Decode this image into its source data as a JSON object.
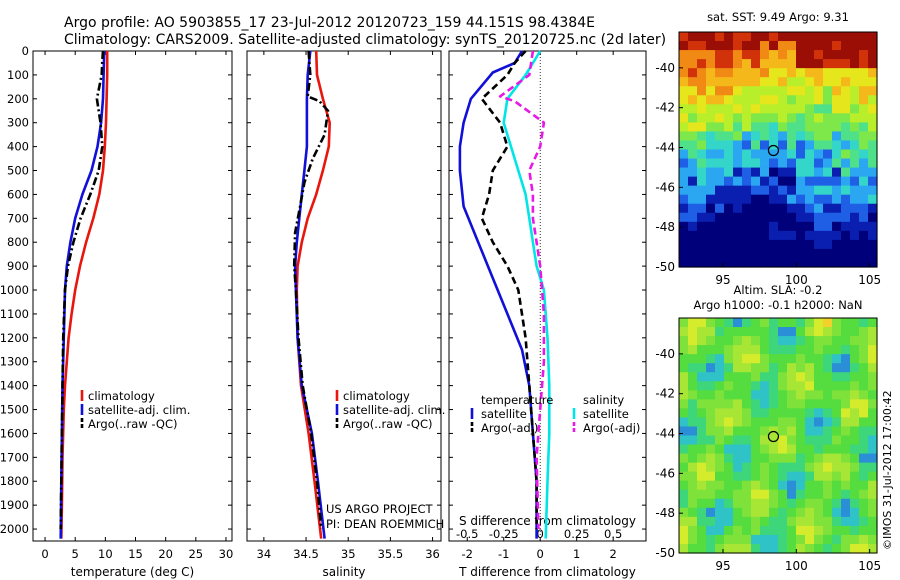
{
  "header": {
    "line1": "Argo profile: AO 5903855_17 23-Jul-2012 20120723_159 44.151S 98.4384E",
    "line2": "Climatology: CARS2009. Satellite-adjusted climatology: synTS_20120725.nc (2d later)"
  },
  "depth_ticks": [
    0,
    100,
    200,
    300,
    400,
    500,
    600,
    700,
    800,
    900,
    1000,
    1100,
    1200,
    1300,
    1400,
    1500,
    1600,
    1700,
    1800,
    1900,
    2000
  ],
  "colors": {
    "climatology": "#e8160c",
    "satellite": "#1010d8",
    "argo": "#000000",
    "salinity_sat": "#00e6e6",
    "salinity_argo": "#e619e6"
  },
  "chart_data": [
    {
      "type": "line",
      "xlabel": "temperature (deg C)",
      "ylim": [
        2050,
        0
      ],
      "xlim": [
        -2,
        31
      ],
      "xticks": [
        0,
        5,
        10,
        15,
        20,
        25,
        30
      ],
      "xtick_labels": [
        "0",
        "5",
        "10",
        "15",
        "20",
        "25",
        "30"
      ],
      "legend": [
        "climatology",
        "satellite-adj. clim.",
        "Argo(..raw -QC)"
      ],
      "series": [
        {
          "name": "climatology",
          "color": "#e8160c",
          "style": "solid",
          "points": [
            [
              10.3,
              0
            ],
            [
              10.3,
              100
            ],
            [
              10.2,
              200
            ],
            [
              10.1,
              300
            ],
            [
              9.9,
              400
            ],
            [
              9.6,
              500
            ],
            [
              9.0,
              600
            ],
            [
              8.0,
              700
            ],
            [
              6.8,
              800
            ],
            [
              5.8,
              900
            ],
            [
              5.0,
              1000
            ],
            [
              4.4,
              1100
            ],
            [
              3.9,
              1200
            ],
            [
              3.6,
              1300
            ],
            [
              3.3,
              1400
            ],
            [
              3.1,
              1500
            ],
            [
              2.9,
              1700
            ],
            [
              2.8,
              1900
            ],
            [
              2.7,
              2040
            ]
          ]
        },
        {
          "name": "satellite-adj. clim.",
          "color": "#1010d8",
          "style": "solid",
          "points": [
            [
              9.8,
              0
            ],
            [
              9.7,
              100
            ],
            [
              9.6,
              200
            ],
            [
              9.3,
              300
            ],
            [
              8.7,
              400
            ],
            [
              7.7,
              500
            ],
            [
              6.2,
              600
            ],
            [
              5.0,
              700
            ],
            [
              4.2,
              800
            ],
            [
              3.6,
              900
            ],
            [
              3.3,
              1000
            ],
            [
              3.1,
              1200
            ],
            [
              2.9,
              1400
            ],
            [
              2.8,
              1600
            ],
            [
              2.7,
              1800
            ],
            [
              2.6,
              2040
            ]
          ]
        },
        {
          "name": "Argo(..raw -QC)",
          "color": "#000000",
          "style": "dashdot",
          "points": [
            [
              9.6,
              0
            ],
            [
              9.5,
              40
            ],
            [
              9.4,
              100
            ],
            [
              8.6,
              200
            ],
            [
              9.2,
              300
            ],
            [
              9.5,
              400
            ],
            [
              8.9,
              500
            ],
            [
              7.5,
              600
            ],
            [
              5.9,
              700
            ],
            [
              4.7,
              800
            ],
            [
              3.8,
              900
            ],
            [
              3.3,
              1000
            ],
            [
              3.0,
              1200
            ],
            [
              2.9,
              1400
            ],
            [
              2.8,
              1600
            ],
            [
              2.7,
              1800
            ],
            [
              2.6,
              2000
            ]
          ]
        }
      ]
    },
    {
      "type": "line",
      "xlabel": "salinity",
      "ylim": [
        2050,
        0
      ],
      "xlim": [
        33.8,
        36.1
      ],
      "xticks": [
        34,
        34.5,
        35,
        35.5,
        36
      ],
      "xtick_labels": [
        "34",
        "34.5",
        "35",
        "35.5",
        "36"
      ],
      "legend": [
        "climatology",
        "satellite-adj. clim.",
        "Argo(..raw -QC)"
      ],
      "annotation": [
        "US ARGO PROJECT",
        "PI: DEAN ROEMMICH"
      ],
      "series": [
        {
          "name": "climatology",
          "color": "#e8160c",
          "style": "solid",
          "points": [
            [
              34.62,
              0
            ],
            [
              34.63,
              100
            ],
            [
              34.7,
              200
            ],
            [
              34.78,
              300
            ],
            [
              34.77,
              400
            ],
            [
              34.7,
              500
            ],
            [
              34.62,
              600
            ],
            [
              34.52,
              700
            ],
            [
              34.45,
              800
            ],
            [
              34.4,
              900
            ],
            [
              34.39,
              1000
            ],
            [
              34.4,
              1200
            ],
            [
              34.44,
              1400
            ],
            [
              34.53,
              1600
            ],
            [
              34.6,
              1800
            ],
            [
              34.68,
              2040
            ]
          ]
        },
        {
          "name": "satellite-adj. clim.",
          "color": "#1010d8",
          "style": "solid",
          "points": [
            [
              34.55,
              0
            ],
            [
              34.52,
              100
            ],
            [
              34.51,
              200
            ],
            [
              34.51,
              300
            ],
            [
              34.51,
              400
            ],
            [
              34.48,
              500
            ],
            [
              34.45,
              600
            ],
            [
              34.42,
              700
            ],
            [
              34.39,
              800
            ],
            [
              34.37,
              900
            ],
            [
              34.38,
              1000
            ],
            [
              34.4,
              1200
            ],
            [
              34.45,
              1400
            ],
            [
              34.57,
              1600
            ],
            [
              34.64,
              1800
            ],
            [
              34.72,
              2040
            ]
          ]
        },
        {
          "name": "Argo(..raw -QC)",
          "color": "#000000",
          "style": "dashdot",
          "points": [
            [
              34.53,
              0
            ],
            [
              34.55,
              100
            ],
            [
              34.52,
              190
            ],
            [
              34.66,
              210
            ],
            [
              34.76,
              250
            ],
            [
              34.72,
              350
            ],
            [
              34.58,
              450
            ],
            [
              34.48,
              550
            ],
            [
              34.43,
              650
            ],
            [
              34.37,
              760
            ],
            [
              34.36,
              900
            ],
            [
              34.38,
              1000
            ],
            [
              34.41,
              1200
            ],
            [
              34.46,
              1400
            ],
            [
              34.56,
              1600
            ],
            [
              34.63,
              1800
            ],
            [
              34.68,
              2000
            ]
          ]
        }
      ]
    },
    {
      "type": "line",
      "xlabel": "T difference from climatology",
      "secondary_xlabel": "S difference from climatology",
      "ylim": [
        2050,
        0
      ],
      "xlim": [
        -2.5,
        2.9
      ],
      "xticks": [
        -2,
        -1,
        0,
        1,
        2
      ],
      "xtick_labels": [
        "-2",
        "-1",
        "0",
        "1",
        "2"
      ],
      "secondary_ticks": [
        "-0.5",
        "-0.25",
        "0",
        "0.25",
        "0.5"
      ],
      "secondary_tick_positions": [
        -2,
        -1,
        0,
        1,
        2
      ],
      "legend_groups": [
        {
          "title": "temperature",
          "items": [
            "satellite",
            "Argo(-adj)"
          ]
        },
        {
          "title": "salinity",
          "items": [
            "satellite",
            "Argo(-adj)"
          ]
        }
      ],
      "series": [
        {
          "name": "satellite",
          "group": "temperature",
          "color": "#1010d8",
          "style": "solid",
          "points": [
            [
              -0.5,
              0
            ],
            [
              -0.7,
              50
            ],
            [
              -1.3,
              90
            ],
            [
              -1.9,
              200
            ],
            [
              -2.1,
              300
            ],
            [
              -2.2,
              400
            ],
            [
              -2.2,
              500
            ],
            [
              -2.1,
              650
            ],
            [
              -1.7,
              800
            ],
            [
              -1.3,
              950
            ],
            [
              -0.9,
              1100
            ],
            [
              -0.5,
              1250
            ],
            [
              -0.3,
              1400
            ],
            [
              -0.2,
              1600
            ],
            [
              -0.1,
              1800
            ],
            [
              -0.1,
              2040
            ]
          ]
        },
        {
          "name": "Argo(-adj)",
          "group": "temperature",
          "color": "#000000",
          "style": "dashed",
          "points": [
            [
              -0.4,
              0
            ],
            [
              -0.7,
              50
            ],
            [
              -0.9,
              100
            ],
            [
              -1.6,
              200
            ],
            [
              -1.1,
              300
            ],
            [
              -0.9,
              400
            ],
            [
              -1.3,
              500
            ],
            [
              -1.4,
              600
            ],
            [
              -1.6,
              700
            ],
            [
              -1.3,
              800
            ],
            [
              -0.9,
              900
            ],
            [
              -0.6,
              1000
            ],
            [
              -0.4,
              1200
            ],
            [
              -0.3,
              1400
            ],
            [
              -0.2,
              1600
            ],
            [
              -0.1,
              1800
            ],
            [
              -0.1,
              2000
            ]
          ]
        },
        {
          "name": "satellite",
          "group": "salinity",
          "color": "#00e6e6",
          "style": "solid",
          "points": [
            [
              0.0,
              0
            ],
            [
              -0.4,
              100
            ],
            [
              -0.9,
              200
            ],
            [
              -1.0,
              300
            ],
            [
              -0.8,
              400
            ],
            [
              -0.6,
              500
            ],
            [
              -0.4,
              600
            ],
            [
              -0.3,
              700
            ],
            [
              -0.2,
              800
            ],
            [
              -0.1,
              900
            ],
            [
              0.1,
              1000
            ],
            [
              0.2,
              1200
            ],
            [
              0.25,
              1400
            ],
            [
              0.25,
              1600
            ],
            [
              0.2,
              1800
            ],
            [
              0.15,
              2040
            ]
          ]
        },
        {
          "name": "Argo(-adj)",
          "group": "salinity",
          "color": "#e619e6",
          "style": "dashed",
          "points": [
            [
              -0.2,
              0
            ],
            [
              -0.3,
              100
            ],
            [
              -1.1,
              190
            ],
            [
              -0.7,
              210
            ],
            [
              0.1,
              300
            ],
            [
              0.0,
              400
            ],
            [
              -0.3,
              500
            ],
            [
              -0.2,
              600
            ],
            [
              -0.2,
              700
            ],
            [
              -0.1,
              800
            ],
            [
              0.0,
              900
            ],
            [
              0.1,
              1100
            ],
            [
              0.1,
              1300
            ],
            [
              0.0,
              1500
            ],
            [
              -0.1,
              1700
            ],
            [
              -0.05,
              2000
            ]
          ]
        }
      ]
    },
    {
      "type": "heatmap",
      "title": "sat. SST: 9.49 Argo: 9.31",
      "xlim": [
        92,
        105.5
      ],
      "ylim": [
        -50,
        -38.2
      ],
      "xticks": [
        95,
        100,
        105
      ],
      "yticks": [
        -50,
        -48,
        -46,
        -44,
        -42,
        -40
      ],
      "marker": {
        "lon": 98.44,
        "lat": -44.15
      }
    },
    {
      "type": "heatmap",
      "title": "Altim. SLA: -0.2",
      "subtitle": "Argo h1000: -0.1 h2000: NaN",
      "xlim": [
        92,
        105.5
      ],
      "ylim": [
        -50,
        -38.2
      ],
      "xticks": [
        95,
        100,
        105
      ],
      "yticks": [
        -50,
        -48,
        -46,
        -44,
        -42,
        -40
      ],
      "marker": {
        "lon": 98.44,
        "lat": -44.15
      }
    }
  ],
  "side_label": "©IMOS 31-Jul-2012 17:00:42"
}
